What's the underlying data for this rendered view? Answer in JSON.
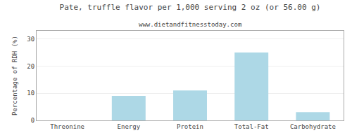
{
  "chart_data": {
    "type": "bar",
    "title": "Pate, truffle flavor per 1,000 serving 2 oz (or 56.00 g)",
    "subtitle": "www.dietandfitnesstoday.com",
    "categories": [
      "Threonine",
      "Energy",
      "Protein",
      "Total-Fat",
      "Carbohydrate"
    ],
    "values": [
      0,
      9,
      11,
      25,
      3
    ],
    "color": "#add8e6",
    "ylabel": "Percentage of RDH (%)",
    "ylim": [
      0,
      33
    ],
    "yticks": [
      0,
      10,
      20,
      30
    ],
    "grid": true
  }
}
